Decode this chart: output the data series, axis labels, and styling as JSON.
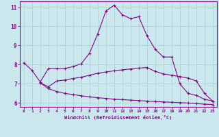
{
  "title": "",
  "xlabel": "Windchill (Refroidissement éolien,°C)",
  "ylabel": "",
  "background_color": "#cce8ef",
  "line_color": "#880088",
  "grid_color": "#aacccc",
  "xlim": [
    -0.5,
    23.5
  ],
  "ylim": [
    5.8,
    11.3
  ],
  "yticks": [
    6,
    7,
    8,
    9,
    10,
    11
  ],
  "xticks": [
    0,
    1,
    2,
    3,
    4,
    5,
    6,
    7,
    8,
    9,
    10,
    11,
    12,
    13,
    14,
    15,
    16,
    17,
    18,
    19,
    20,
    21,
    22,
    23
  ],
  "line1_x": [
    0,
    1,
    2,
    3,
    4,
    5,
    6,
    7,
    8,
    9,
    10,
    11,
    12,
    13,
    14,
    15,
    16,
    17,
    18,
    19,
    20,
    21,
    22,
    23
  ],
  "line1_y": [
    8.1,
    7.7,
    7.1,
    7.8,
    7.8,
    7.8,
    7.9,
    8.05,
    8.6,
    9.6,
    10.8,
    11.1,
    10.6,
    10.4,
    10.5,
    9.5,
    8.8,
    8.4,
    8.4,
    7.0,
    6.5,
    6.4,
    6.2,
    6.1
  ],
  "line2_x": [
    2,
    3,
    4,
    5,
    6,
    7,
    8,
    9,
    10,
    11,
    12,
    13,
    14,
    15,
    16,
    17,
    18,
    19,
    20,
    21,
    22,
    23
  ],
  "line2_y": [
    7.05,
    6.85,
    7.15,
    7.2,
    7.28,
    7.35,
    7.45,
    7.55,
    7.62,
    7.68,
    7.73,
    7.78,
    7.82,
    7.85,
    7.65,
    7.52,
    7.45,
    7.38,
    7.3,
    7.15,
    6.5,
    6.1
  ],
  "line3_x": [
    2,
    3,
    4,
    5,
    6,
    7,
    8,
    9,
    10,
    11,
    12,
    13,
    14,
    15,
    16,
    17,
    18,
    19,
    20,
    21,
    22,
    23
  ],
  "line3_y": [
    7.05,
    6.75,
    6.6,
    6.5,
    6.44,
    6.38,
    6.32,
    6.28,
    6.24,
    6.2,
    6.18,
    6.15,
    6.13,
    6.1,
    6.08,
    6.06,
    6.04,
    6.02,
    6.0,
    5.97,
    5.94,
    5.92
  ]
}
